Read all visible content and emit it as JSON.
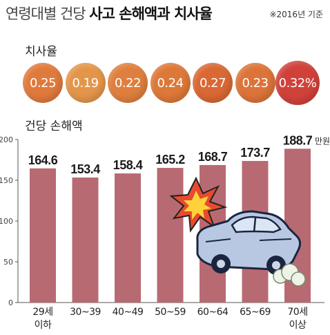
{
  "header": {
    "title_light": "연령대별 건당",
    "title_bold": "사고 손해액과 치사율",
    "note": "※2016년 기준"
  },
  "rates_section": {
    "label": "치사율",
    "items": [
      {
        "value": "0.25",
        "color": "#e07a3c"
      },
      {
        "value": "0.19",
        "color": "#e3964a"
      },
      {
        "value": "0.22",
        "color": "#df7f3e"
      },
      {
        "value": "0.24",
        "color": "#dd7838"
      },
      {
        "value": "0.27",
        "color": "#d96834"
      },
      {
        "value": "0.23",
        "color": "#dc7439"
      },
      {
        "value": "0.32%",
        "color": "#d0413a"
      }
    ]
  },
  "bars_section": {
    "label": "건당 손해액",
    "unit": "만원"
  },
  "chart_data": {
    "type": "bar",
    "categories": [
      [
        "29세",
        "이하"
      ],
      [
        "30~39"
      ],
      [
        "40~49"
      ],
      [
        "50~59"
      ],
      [
        "60~64"
      ],
      [
        "65~69"
      ],
      [
        "70세",
        "이상"
      ]
    ],
    "values": [
      164.6,
      153.4,
      158.4,
      165.2,
      168.7,
      173.7,
      188.7
    ],
    "value_labels": [
      "164.6",
      "153.4",
      "158.4",
      "165.2",
      "168.7",
      "173.7",
      "188.7"
    ],
    "ylim": [
      0,
      200
    ],
    "yticks": [
      0,
      50,
      100,
      150,
      200
    ],
    "bar_color": "#b86a72",
    "grid": false
  }
}
